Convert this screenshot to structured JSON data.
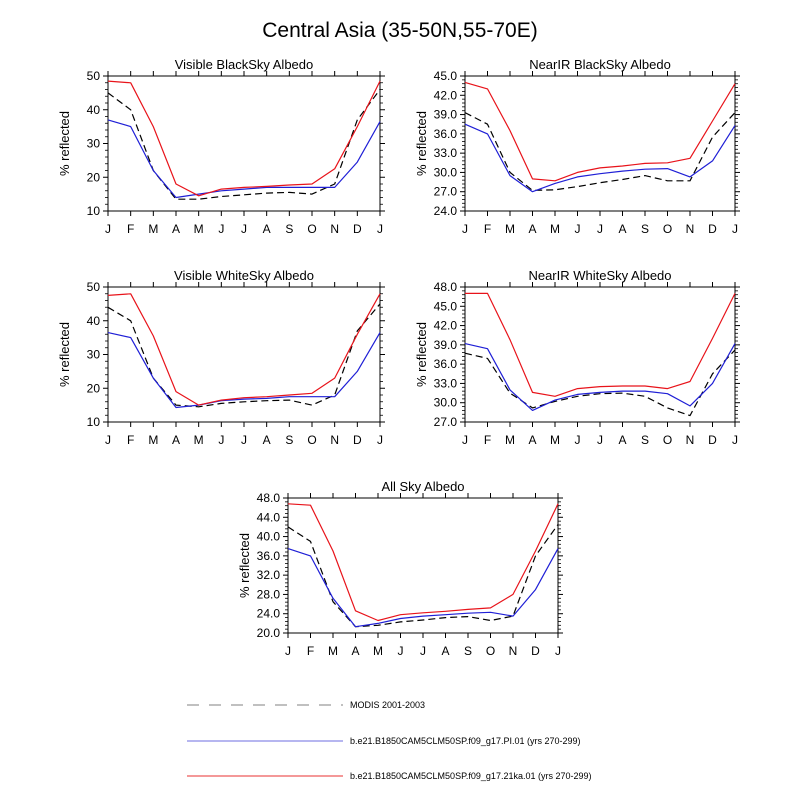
{
  "figure_title": "Central Asia (35-50N,55-70E)",
  "colors": {
    "modis": "#000000",
    "pi": "#1f1fd6",
    "ka21": "#e8131a",
    "legend_modis": "#9a9a9a",
    "legend_pi": "#8a8ae6",
    "legend_ka21": "#ee5a5a"
  },
  "legend": [
    {
      "label": "MODIS 2001-2003",
      "style": "dashed",
      "color_key": "legend_modis"
    },
    {
      "label": "b.e21.B1850CAM5CLM50SP.f09_g17.PI.01 (yrs 270-299)",
      "style": "solid",
      "color_key": "legend_pi"
    },
    {
      "label": "b.e21.B1850CAM5CLM50SP.f09_g17.21ka.01 (yrs 270-299)",
      "style": "solid",
      "color_key": "legend_ka21"
    }
  ],
  "chart_data": [
    {
      "type": "line",
      "title": "Visible BlackSky Albedo",
      "xlabel": "",
      "ylabel": "% reflected",
      "categories": [
        "J",
        "F",
        "M",
        "A",
        "M",
        "J",
        "J",
        "A",
        "S",
        "O",
        "N",
        "D",
        "J"
      ],
      "ylim": [
        10,
        50
      ],
      "yticks": [
        "10",
        "20",
        "30",
        "40",
        "50"
      ],
      "series": [
        {
          "name": "MODIS 2001-2003",
          "style": "dashed",
          "color_key": "modis",
          "values": [
            45,
            40,
            22,
            13.5,
            13.5,
            14.3,
            14.8,
            15.3,
            15.5,
            15,
            18,
            37,
            46
          ]
        },
        {
          "name": "b.e21.B1850CAM5CLM50SP.f09_g17.PI.01 (yrs 270-299)",
          "style": "solid",
          "color_key": "pi",
          "values": [
            37,
            35,
            22,
            14,
            15,
            16,
            16.5,
            17,
            17,
            17,
            17,
            24.5,
            36.5
          ]
        },
        {
          "name": "b.e21.B1850CAM5CLM50SP.f09_g17.21ka.01 (yrs 270-299)",
          "style": "solid",
          "color_key": "ka21",
          "values": [
            48.5,
            48,
            35,
            18,
            14.5,
            16.5,
            17,
            17.3,
            17.7,
            18,
            22.5,
            35,
            48.5
          ]
        }
      ]
    },
    {
      "type": "line",
      "title": "NearIR BlackSky Albedo",
      "xlabel": "",
      "ylabel": "% reflected",
      "categories": [
        "J",
        "F",
        "M",
        "A",
        "M",
        "J",
        "J",
        "A",
        "S",
        "O",
        "N",
        "D",
        "J"
      ],
      "ylim": [
        24,
        45
      ],
      "yticks": [
        "24.0",
        "27.0",
        "30.0",
        "33.0",
        "36.0",
        "39.0",
        "42.0",
        "45.0"
      ],
      "series": [
        {
          "name": "MODIS 2001-2003",
          "style": "dashed",
          "color_key": "modis",
          "values": [
            39.3,
            37.5,
            30,
            27.2,
            27.3,
            27.8,
            28.4,
            28.9,
            29.5,
            28.7,
            28.7,
            35.5,
            39.3
          ]
        },
        {
          "name": "b.e21.B1850CAM5CLM50SP.f09_g17.PI.01 (yrs 270-299)",
          "style": "solid",
          "color_key": "pi",
          "values": [
            37.5,
            36,
            29.5,
            27,
            28.3,
            29.3,
            29.8,
            30.2,
            30.5,
            30.6,
            29.3,
            31.8,
            37.3
          ]
        },
        {
          "name": "b.e21.B1850CAM5CLM50SP.f09_g17.21ka.01 (yrs 270-299)",
          "style": "solid",
          "color_key": "ka21",
          "values": [
            44,
            43,
            36.5,
            29,
            28.7,
            30,
            30.7,
            31,
            31.4,
            31.5,
            32.2,
            38,
            43.8
          ]
        }
      ]
    },
    {
      "type": "line",
      "title": "Visible WhiteSky Albedo",
      "xlabel": "",
      "ylabel": "% reflected",
      "categories": [
        "J",
        "F",
        "M",
        "A",
        "M",
        "J",
        "J",
        "A",
        "S",
        "O",
        "N",
        "D",
        "J"
      ],
      "ylim": [
        10,
        50
      ],
      "yticks": [
        "10",
        "20",
        "30",
        "40",
        "50"
      ],
      "series": [
        {
          "name": "MODIS 2001-2003",
          "style": "dashed",
          "color_key": "modis",
          "values": [
            44,
            40,
            23,
            15,
            14.5,
            15.5,
            16,
            16.3,
            16.5,
            15,
            18,
            37,
            45
          ]
        },
        {
          "name": "b.e21.B1850CAM5CLM50SP.f09_g17.PI.01 (yrs 270-299)",
          "style": "solid",
          "color_key": "pi",
          "values": [
            36.5,
            35,
            23,
            14.3,
            15,
            16.3,
            16.8,
            17,
            17.5,
            17.5,
            17.5,
            25,
            36.5
          ]
        },
        {
          "name": "b.e21.B1850CAM5CLM50SP.f09_g17.21ka.01 (yrs 270-299)",
          "style": "solid",
          "color_key": "ka21",
          "values": [
            47.5,
            48,
            35.5,
            19,
            15,
            16.5,
            17.2,
            17.5,
            18,
            18.5,
            23,
            36,
            48
          ]
        }
      ]
    },
    {
      "type": "line",
      "title": "NearIR WhiteSky Albedo",
      "xlabel": "",
      "ylabel": "% reflected",
      "categories": [
        "J",
        "F",
        "M",
        "A",
        "M",
        "J",
        "J",
        "A",
        "S",
        "O",
        "N",
        "D",
        "J"
      ],
      "ylim": [
        27,
        48
      ],
      "yticks": [
        "27.0",
        "30.0",
        "33.0",
        "36.0",
        "39.0",
        "42.0",
        "45.0",
        "48.0"
      ],
      "series": [
        {
          "name": "MODIS 2001-2003",
          "style": "dashed",
          "color_key": "modis",
          "values": [
            37.7,
            36.9,
            31.5,
            29.2,
            30.2,
            31,
            31.4,
            31.5,
            31,
            29.2,
            28,
            34.5,
            38.2
          ]
        },
        {
          "name": "b.e21.B1850CAM5CLM50SP.f09_g17.PI.01 (yrs 270-299)",
          "style": "solid",
          "color_key": "pi",
          "values": [
            39.2,
            38.4,
            32,
            28.8,
            30.4,
            31.3,
            31.6,
            31.8,
            31.8,
            31.4,
            29.5,
            33,
            39.2
          ]
        },
        {
          "name": "b.e21.B1850CAM5CLM50SP.f09_g17.21ka.01 (yrs 270-299)",
          "style": "solid",
          "color_key": "ka21",
          "values": [
            47,
            47,
            39.8,
            31.6,
            31,
            32.2,
            32.5,
            32.6,
            32.6,
            32.2,
            33.3,
            40,
            47
          ]
        }
      ]
    },
    {
      "type": "line",
      "title": "All Sky Albedo",
      "xlabel": "",
      "ylabel": "% reflected",
      "categories": [
        "J",
        "F",
        "M",
        "A",
        "M",
        "J",
        "J",
        "A",
        "S",
        "O",
        "N",
        "D",
        "J"
      ],
      "ylim": [
        20,
        48
      ],
      "yticks": [
        "20.0",
        "24.0",
        "28.0",
        "32.0",
        "36.0",
        "40.0",
        "44.0",
        "48.0"
      ],
      "series": [
        {
          "name": "MODIS 2001-2003",
          "style": "dashed",
          "color_key": "modis",
          "values": [
            42,
            39,
            26.5,
            21.3,
            21.6,
            22.3,
            22.7,
            23.2,
            23.4,
            22.6,
            23.5,
            36,
            42.5
          ]
        },
        {
          "name": "b.e21.B1850CAM5CLM50SP.f09_g17.PI.01 (yrs 270-299)",
          "style": "solid",
          "color_key": "pi",
          "values": [
            37.5,
            36,
            27.2,
            21.3,
            22,
            23,
            23.5,
            23.8,
            24.1,
            24.3,
            23.5,
            29,
            37.5
          ]
        },
        {
          "name": "b.e21.B1850CAM5CLM50SP.f09_g17.21ka.01 (yrs 270-299)",
          "style": "solid",
          "color_key": "ka21",
          "values": [
            46.8,
            46.5,
            37,
            24.6,
            22.6,
            23.8,
            24.2,
            24.5,
            24.9,
            25.2,
            28,
            37,
            46.8
          ]
        }
      ]
    }
  ]
}
